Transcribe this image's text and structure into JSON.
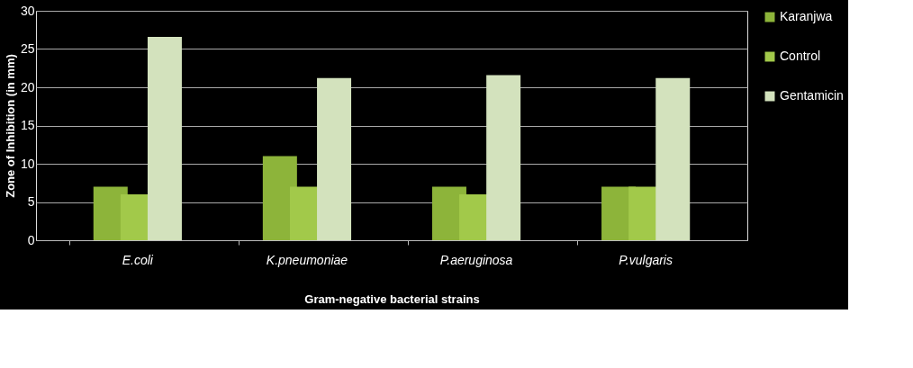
{
  "chart_data": {
    "type": "bar",
    "xlabel": "Gram-negative bacterial strains",
    "ylabel": "Zone of Inhibition (in mm)",
    "categories": [
      "E.coli",
      "K.pneumoniae",
      "P.aeruginosa",
      "P.vulgaris"
    ],
    "series": [
      {
        "name": "Karanjwa",
        "color": "#8db43a",
        "values": [
          7,
          11,
          7,
          7
        ]
      },
      {
        "name": "Control",
        "color": "#a2c94a",
        "values": [
          6,
          7,
          6,
          7
        ]
      },
      {
        "name": "Gentamicin",
        "color": "#d3e2bd",
        "values": [
          26.6,
          21.2,
          21.6,
          21.2
        ]
      }
    ],
    "ylim": [
      0,
      30
    ],
    "yticks": [
      0,
      5,
      10,
      15,
      20,
      25,
      30
    ],
    "grid": "y",
    "legend": "right"
  }
}
